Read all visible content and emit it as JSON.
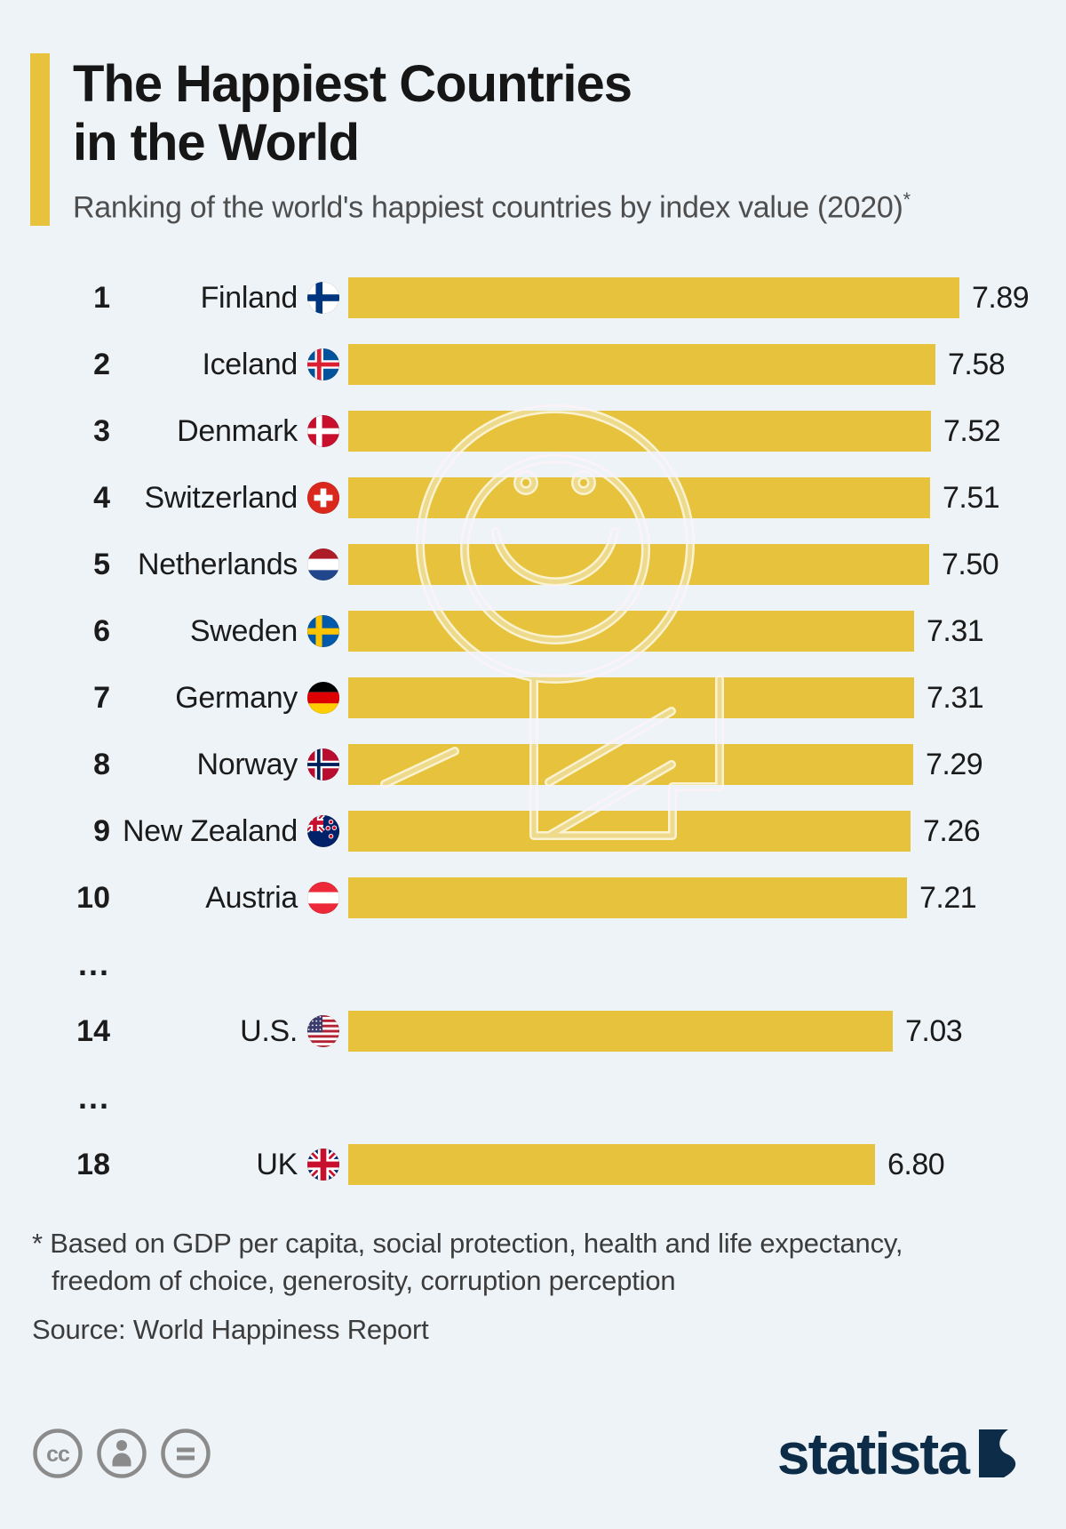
{
  "header": {
    "title_line1": "The Happiest Countries",
    "title_line2": "in the World",
    "subtitle": "Ranking of the world's happiest countries by index value (2020)",
    "subtitle_sup": "*"
  },
  "chart_data": {
    "type": "bar",
    "orientation": "horizontal",
    "title": "The Happiest Countries in the World",
    "subtitle": "Ranking of the world's happiest countries by index value (2020)*",
    "value_label": "happiness index value (2020)",
    "xlim": [
      0,
      7.89
    ],
    "grid": false,
    "legend": false,
    "bar_color": "#e6c23d",
    "rows": [
      {
        "rank": "1",
        "country": "Finland",
        "flag": "finland-flag",
        "value": 7.89,
        "display": "7.89"
      },
      {
        "rank": "2",
        "country": "Iceland",
        "flag": "iceland-flag",
        "value": 7.58,
        "display": "7.58"
      },
      {
        "rank": "3",
        "country": "Denmark",
        "flag": "denmark-flag",
        "value": 7.52,
        "display": "7.52"
      },
      {
        "rank": "4",
        "country": "Switzerland",
        "flag": "switzerland-flag",
        "value": 7.51,
        "display": "7.51"
      },
      {
        "rank": "5",
        "country": "Netherlands",
        "flag": "netherlands-flag",
        "value": 7.5,
        "display": "7.50"
      },
      {
        "rank": "6",
        "country": "Sweden",
        "flag": "sweden-flag",
        "value": 7.31,
        "display": "7.31"
      },
      {
        "rank": "7",
        "country": "Germany",
        "flag": "germany-flag",
        "value": 7.31,
        "display": "7.31"
      },
      {
        "rank": "8",
        "country": "Norway",
        "flag": "norway-flag",
        "value": 7.29,
        "display": "7.29"
      },
      {
        "rank": "9",
        "country": "New Zealand",
        "flag": "new-zealand-flag",
        "value": 7.26,
        "display": "7.26"
      },
      {
        "rank": "10",
        "country": "Austria",
        "flag": "austria-flag",
        "value": 7.21,
        "display": "7.21"
      },
      {
        "ellipsis": "..."
      },
      {
        "rank": "14",
        "country": "U.S.",
        "flag": "us-flag",
        "value": 7.03,
        "display": "7.03"
      },
      {
        "ellipsis": "..."
      },
      {
        "rank": "18",
        "country": "UK",
        "flag": "uk-flag",
        "value": 6.8,
        "display": "6.80"
      }
    ]
  },
  "footer": {
    "note_line1": "* Based on GDP per capita, social protection, health and life expectancy,",
    "note_line2": "freedom of choice, generosity, corruption perception",
    "source": "Source: World Happiness Report"
  },
  "branding": {
    "logo_text": "statista",
    "license_icons": [
      "cc-icon",
      "by-icon",
      "nd-icon"
    ]
  },
  "colors": {
    "background": "#eef3f7",
    "accent": "#e6c23d",
    "bar": "#e6c23d",
    "statista_navy": "#0c2c48",
    "license_gray": "#8b8b8b"
  }
}
